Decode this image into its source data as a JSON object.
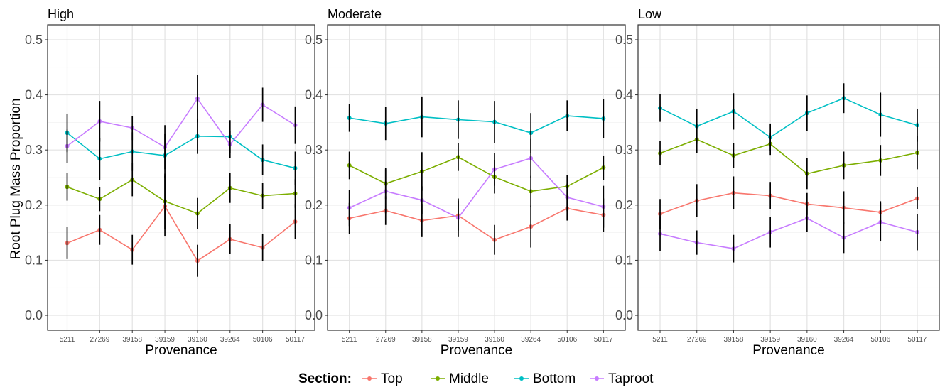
{
  "chart_data": {
    "type": "line",
    "ylabel": "Root Plug Mass Proportion",
    "xlabel": "Provenance",
    "ylim": [
      0,
      0.5
    ],
    "yticks": [
      "0.0",
      "0.1",
      "0.2",
      "0.3",
      "0.4",
      "0.5"
    ],
    "categories": [
      "5211",
      "27269",
      "39158",
      "39159",
      "39160",
      "39264",
      "50106",
      "50117"
    ],
    "grid": true,
    "error_bars": true,
    "legend": {
      "title": "Section:",
      "position": "bottom",
      "entries": [
        {
          "name": "Top",
          "color": "#f8766d"
        },
        {
          "name": "Middle",
          "color": "#7cae00"
        },
        {
          "name": "Bottom",
          "color": "#00bfc4"
        },
        {
          "name": "Taproot",
          "color": "#c77cff"
        }
      ]
    },
    "panels": [
      {
        "title": "High",
        "series": [
          {
            "name": "Top",
            "values": [
              0.131,
              0.155,
              0.119,
              0.198,
              0.099,
              0.138,
              0.123,
              0.17
            ],
            "err": [
              0.029,
              0.027,
              0.027,
              0.055,
              0.029,
              0.027,
              0.025,
              0.032
            ]
          },
          {
            "name": "Middle",
            "values": [
              0.233,
              0.211,
              0.246,
              0.207,
              0.185,
              0.231,
              0.217,
              0.221
            ],
            "err": [
              0.025,
              0.022,
              0.03,
              0.05,
              0.028,
              0.027,
              0.024,
              0.026
            ]
          },
          {
            "name": "Bottom",
            "values": [
              0.331,
              0.284,
              0.297,
              0.29,
              0.325,
              0.324,
              0.282,
              0.267
            ],
            "err": [
              0.035,
              0.038,
              0.035,
              0.04,
              0.032,
              0.03,
              0.028,
              0.03
            ]
          },
          {
            "name": "Taproot",
            "values": [
              0.307,
              0.352,
              0.34,
              0.305,
              0.393,
              0.31,
              0.382,
              0.345
            ],
            "err": [
              0.03,
              0.037,
              0.022,
              0.04,
              0.043,
              0.025,
              0.031,
              0.034
            ]
          }
        ]
      },
      {
        "title": "Moderate",
        "series": [
          {
            "name": "Top",
            "values": [
              0.176,
              0.19,
              0.172,
              0.181,
              0.137,
              0.161,
              0.194,
              0.182
            ],
            "err": [
              0.028,
              0.026,
              0.03,
              0.027,
              0.027,
              0.038,
              0.022,
              0.03
            ]
          },
          {
            "name": "Middle",
            "values": [
              0.272,
              0.239,
              0.261,
              0.287,
              0.251,
              0.225,
              0.234,
              0.268
            ],
            "err": [
              0.025,
              0.028,
              0.035,
              0.025,
              0.03,
              0.028,
              0.02,
              0.022
            ]
          },
          {
            "name": "Bottom",
            "values": [
              0.358,
              0.348,
              0.36,
              0.355,
              0.351,
              0.331,
              0.362,
              0.357
            ],
            "err": [
              0.025,
              0.03,
              0.037,
              0.035,
              0.038,
              0.036,
              0.028,
              0.035
            ]
          },
          {
            "name": "Taproot",
            "values": [
              0.195,
              0.225,
              0.209,
              0.177,
              0.265,
              0.285,
              0.214,
              0.197
            ],
            "err": [
              0.033,
              0.04,
              0.025,
              0.035,
              0.03,
              0.035,
              0.025,
              0.038
            ]
          }
        ]
      },
      {
        "title": "Low",
        "series": [
          {
            "name": "Top",
            "values": [
              0.184,
              0.208,
              0.222,
              0.217,
              0.202,
              0.195,
              0.187,
              0.212
            ],
            "err": [
              0.027,
              0.03,
              0.03,
              0.025,
              0.02,
              0.03,
              0.02,
              0.02
            ]
          },
          {
            "name": "Middle",
            "values": [
              0.294,
              0.319,
              0.29,
              0.311,
              0.257,
              0.272,
              0.281,
              0.295
            ],
            "err": [
              0.022,
              0.025,
              0.022,
              0.02,
              0.028,
              0.025,
              0.028,
              0.03
            ]
          },
          {
            "name": "Bottom",
            "values": [
              0.376,
              0.343,
              0.37,
              0.323,
              0.367,
              0.394,
              0.364,
              0.345
            ],
            "err": [
              0.025,
              0.032,
              0.033,
              0.025,
              0.032,
              0.027,
              0.04,
              0.03
            ]
          },
          {
            "name": "Taproot",
            "values": [
              0.148,
              0.132,
              0.121,
              0.151,
              0.176,
              0.141,
              0.169,
              0.151
            ],
            "err": [
              0.032,
              0.022,
              0.025,
              0.028,
              0.025,
              0.028,
              0.035,
              0.033
            ]
          }
        ]
      }
    ]
  }
}
